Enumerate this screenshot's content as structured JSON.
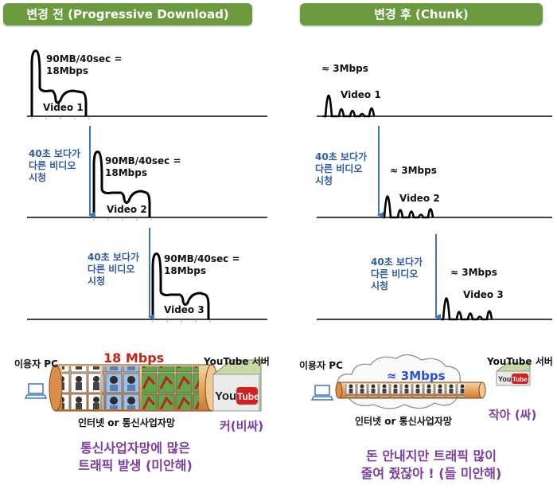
{
  "headers": {
    "before": "변경 전 (Progressive Download)",
    "after": "변경 후 (Chunk)"
  },
  "before": {
    "rate_label": "90MB/40sec =\n18Mbps",
    "switch_note": "40초 보다가\n다른 비디오\n시청",
    "videos": [
      "Video 1",
      "Video 2",
      "Video 3"
    ]
  },
  "after": {
    "rate_label": "≈ 3Mbps",
    "switch_note": "40초 보다가\n다른 비디오\n시청",
    "videos": [
      "Video 1",
      "Video 2",
      "Video 3"
    ]
  },
  "bottom_left": {
    "user_pc": "이용자 PC",
    "speed": "18 Mbps",
    "server": "YouTube 서버",
    "network": "인터넷 or 통신사업자망",
    "server_size": "커(비싸)",
    "conclusion": "통신사업자망에 많은\n트래픽 발생 (미안해)"
  },
  "bottom_right": {
    "user_pc": "이용자 PC",
    "speed": "≈ 3Mbps",
    "server": "YouTube 서버",
    "network": "인터넷 or 통신사업자망",
    "server_size": "작아 (싸)",
    "conclusion": "돈 안내지만 트래픽 많이\n줄여 줬잖아 ! (들 미안해)"
  },
  "logo_text": {
    "you": "You",
    "tube": "Tube"
  },
  "colors": {
    "header_green": "#6b9b3e",
    "arrow_blue": "#3f74c9",
    "speed_red": "#c0261a",
    "speed_blue": "#2a4fd6",
    "purple": "#7a3ea0"
  }
}
